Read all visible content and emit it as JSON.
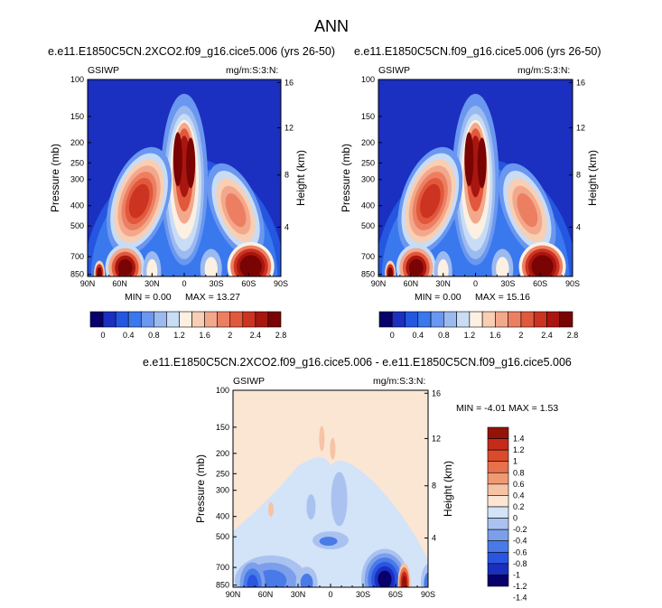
{
  "figure": {
    "title": "ANN"
  },
  "colors": {
    "abs_scale": [
      "#08006b",
      "#1b2fc0",
      "#2456e0",
      "#3a78ee",
      "#6a97ef",
      "#9bbaf0",
      "#c9dcf6",
      "#fbf0e2",
      "#f8cfb4",
      "#f3a88c",
      "#ec7f62",
      "#e2583c",
      "#cc3320",
      "#a8160f",
      "#7a0403"
    ],
    "diff_scale": [
      "#08006b",
      "#1a2fc0",
      "#2a55e0",
      "#4a7ae8",
      "#7c9feb",
      "#aac2f0",
      "#d3e3f8",
      "#fbe6d4",
      "#f6c3a4",
      "#f09a74",
      "#e8704b",
      "#dc4a2c",
      "#c52b18",
      "#951209"
    ]
  },
  "chart_data": [
    {
      "type": "heatmap",
      "title": "e.e11.E1850C5CN.2XCO2.f09_g16.cice5.006 (yrs 26-50)",
      "left_label": "GSIWP",
      "right_label": "mg/m:S:3:N:",
      "xlabel": "",
      "ylabel": "Pressure (mb)",
      "y2label": "Height (km)",
      "x_ticks": [
        "90N",
        "60N",
        "30N",
        "0",
        "30S",
        "60S",
        "90S"
      ],
      "y_ticks": [
        "100",
        "150",
        "200",
        "250",
        "300",
        "400",
        "500",
        "700",
        "850"
      ],
      "y2_ticks": [
        "16",
        "12",
        "8",
        "4"
      ],
      "min_label": "MIN =   0.00",
      "max_label": "MAX =  13.27",
      "colorbar_labels": [
        "0",
        "0.4",
        "0.8",
        "1.2",
        "1.6",
        "2",
        "2.4",
        "2.8"
      ],
      "features": [
        {
          "lat": 0,
          "p": 250,
          "value": 2.8
        },
        {
          "lat": 40,
          "p": 450,
          "value": 2.4
        },
        {
          "lat": 55,
          "p": 800,
          "value": 2.8
        },
        {
          "lat": -60,
          "p": 780,
          "value": 2.8
        },
        {
          "lat": -45,
          "p": 450,
          "value": 2.0
        }
      ]
    },
    {
      "type": "heatmap",
      "title": "e.e11.E1850C5CN.f09_g16.cice5.006 (yrs 26-50)",
      "left_label": "GSIWP",
      "right_label": "mg/m:S:3:N:",
      "xlabel": "",
      "ylabel": "Pressure (mb)",
      "y2label": "Height (km)",
      "x_ticks": [
        "90N",
        "60N",
        "30N",
        "0",
        "30S",
        "60S",
        "90S"
      ],
      "y_ticks": [
        "100",
        "150",
        "200",
        "250",
        "300",
        "400",
        "500",
        "700",
        "850"
      ],
      "y2_ticks": [
        "16",
        "12",
        "8",
        "4"
      ],
      "min_label": "MIN =   0.00",
      "max_label": "MAX =  15.16",
      "colorbar_labels": [
        "0",
        "0.4",
        "0.8",
        "1.2",
        "1.6",
        "2",
        "2.4",
        "2.8"
      ],
      "features": [
        {
          "lat": 0,
          "p": 250,
          "value": 2.8
        },
        {
          "lat": 40,
          "p": 450,
          "value": 2.4
        },
        {
          "lat": 55,
          "p": 800,
          "value": 2.8
        },
        {
          "lat": -60,
          "p": 780,
          "value": 2.8
        },
        {
          "lat": -45,
          "p": 450,
          "value": 2.0
        }
      ]
    },
    {
      "type": "heatmap",
      "title": "e.e11.E1850C5CN.2XCO2.f09_g16.cice5.006 - e.e11.E1850C5CN.f09_g16.cice5.006",
      "left_label": "GSIWP",
      "right_label": "mg/m:S:3:N:",
      "xlabel": "",
      "ylabel": "Pressure (mb)",
      "y2label": "Height (km)",
      "x_ticks": [
        "90N",
        "60N",
        "30N",
        "0",
        "30S",
        "60S",
        "90S"
      ],
      "y_ticks": [
        "100",
        "150",
        "200",
        "250",
        "300",
        "400",
        "500",
        "700",
        "850"
      ],
      "y2_ticks": [
        "16",
        "12",
        "8",
        "4"
      ],
      "min_label": "MIN =  -4.01",
      "max_label": "MAX =   1.53",
      "colorbar_labels": [
        "1.4",
        "1.2",
        "1",
        "0.8",
        "0.6",
        "0.4",
        "0.2",
        "0",
        "-0.2",
        "-0.4",
        "-0.6",
        "-0.8",
        "-1",
        "-1.2",
        "-1.4"
      ],
      "features": [
        {
          "lat": -55,
          "p": 840,
          "value": -1.4
        },
        {
          "lat": -65,
          "p": 840,
          "value": 1.4
        },
        {
          "lat": 70,
          "p": 850,
          "value": -0.4
        },
        {
          "lat": 0,
          "p": 500,
          "value": -0.6
        }
      ]
    }
  ]
}
